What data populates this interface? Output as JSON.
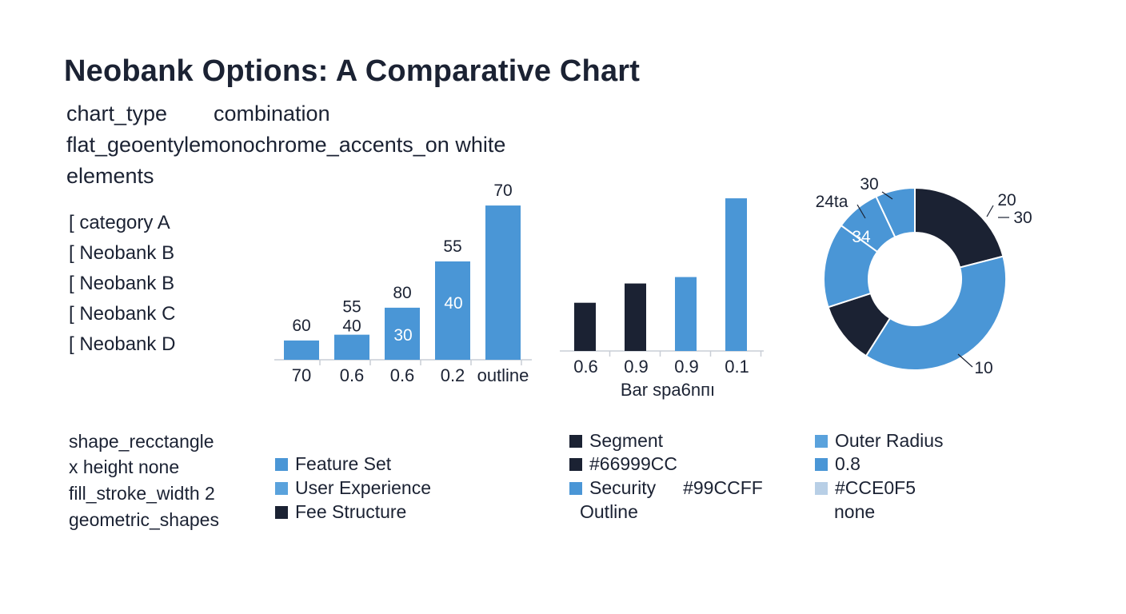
{
  "title": "Neobank Options: A Comparative Chart",
  "meta": {
    "line1_key": "chart_type",
    "line1_value": "combination",
    "line2": "flat_geoentylemonochrome_accents_on white",
    "line3": "elements"
  },
  "categories_list": [
    "[ category A",
    "[ Neobank B",
    "[ Neobank B",
    "[ Neobank C",
    "[ Neobank D"
  ],
  "footer_left": [
    "shape_recctangle",
    "x height none",
    "fill_stroke_width 2",
    "geometric_shapes"
  ],
  "legend_col1": [
    {
      "label": "Feature Set",
      "color": "#4a96d6"
    },
    {
      "label": "User Experience",
      "color": "#5aa2dc"
    },
    {
      "label": "Fee Structure",
      "color": "#1b2233"
    }
  ],
  "legend_col2": [
    {
      "label": "Segment",
      "color": "#1b2233"
    },
    {
      "label": "#66999CC",
      "color": "#1b2233"
    },
    {
      "label": "Security",
      "color": "#4a96d6",
      "extra": "#99CCFF"
    },
    {
      "label": "Outline",
      "color": null
    }
  ],
  "legend_col3": [
    {
      "label": "Outer Radius",
      "color": "#5aa2dc"
    },
    {
      "label": "0.8",
      "color": "#4a96d6"
    },
    {
      "label": "#CCE0F5",
      "color": "#b8cfe6"
    },
    {
      "label": "none",
      "color": null
    }
  ],
  "colors": {
    "blue": "#4a96d6",
    "navy": "#1b2233",
    "axis": "#c9ced6"
  },
  "chart_data": [
    {
      "type": "bar",
      "categories": [
        "70",
        "0.6",
        "0.6",
        "0.2",
        "outline"
      ],
      "values": [
        10,
        13,
        27,
        51,
        80
      ],
      "top_labels": [
        "60",
        "55",
        "80",
        "55",
        "70"
      ],
      "second_labels": [
        "",
        "40",
        "",
        "",
        ""
      ],
      "inner_labels": [
        "",
        "",
        "30",
        "40",
        ""
      ],
      "ylim": [
        0,
        85
      ],
      "color": "#4a96d6"
    },
    {
      "type": "bar",
      "categories": [
        "0.6",
        "0.9",
        "0.9",
        "0.1"
      ],
      "values": [
        30,
        42,
        46,
        95
      ],
      "colors": [
        "#1b2233",
        "#1b2233",
        "#4a96d6",
        "#4a96d6"
      ],
      "xlabel": "Bar spa6nпı",
      "ylim": [
        0,
        100
      ]
    },
    {
      "type": "pie",
      "donut": true,
      "values": [
        21,
        38,
        11,
        15,
        8,
        7
      ],
      "colors": [
        "#1b2233",
        "#4a96d6",
        "#1b2233",
        "#4a96d6",
        "#4a96d6",
        "#4a96d6"
      ],
      "labels": [
        "30",
        "24ta",
        "20",
        "30",
        "34",
        "10"
      ]
    }
  ]
}
